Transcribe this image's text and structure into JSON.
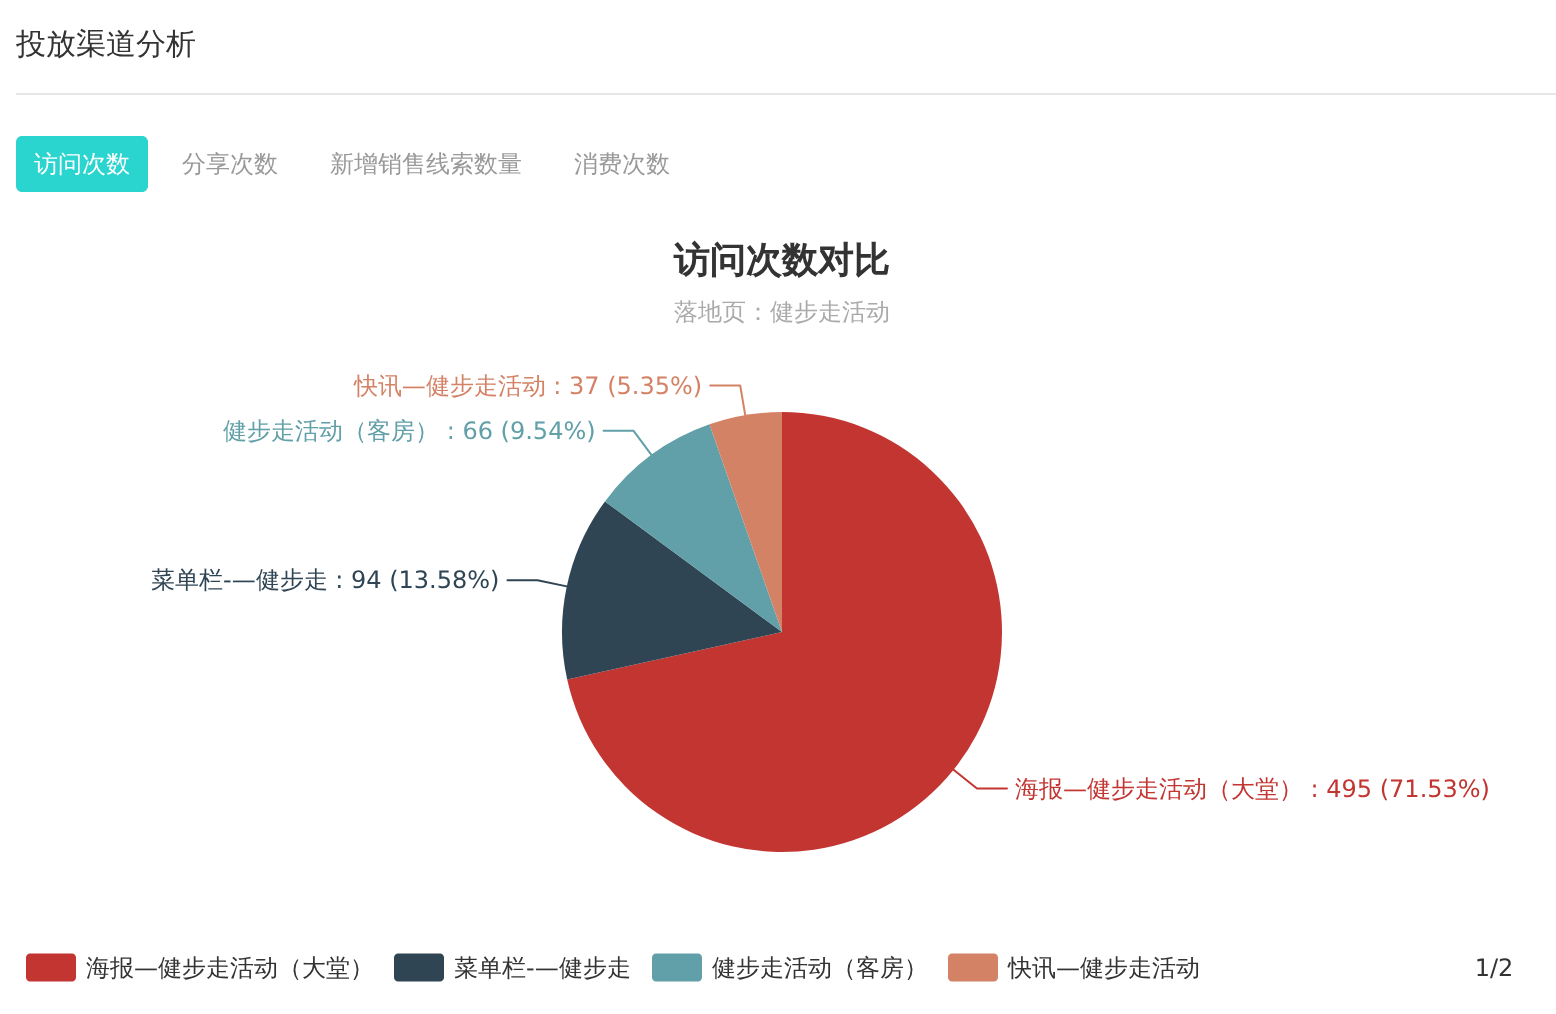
{
  "chart_data": {
    "type": "pie",
    "title": "访问次数对比",
    "subtitle": "落地页：健步走活动",
    "categories": [
      "海报—健步走活动（大堂）",
      "菜单栏-—健步走",
      "健步走活动（客房）",
      "快讯—健步走活动"
    ],
    "values": [
      495,
      94,
      66,
      37
    ],
    "colors": [
      "#c23531",
      "#2f4554",
      "#61a0a8",
      "#d48265"
    ],
    "value_labels": [
      "海报—健步走活动（大堂） : 495 (71.53%)",
      "菜单栏-—健步走 : 94 (13.58%)",
      "健步走活动（客房） : 66 (9.54%)",
      "快讯—健步走活动 : 37 (5.35%)"
    ],
    "legend": "bottom",
    "annotations": [
      "投放渠道分析",
      "访问次数",
      "分享次数",
      "新增销售线索数量",
      "消费次数",
      "1/2"
    ]
  }
}
